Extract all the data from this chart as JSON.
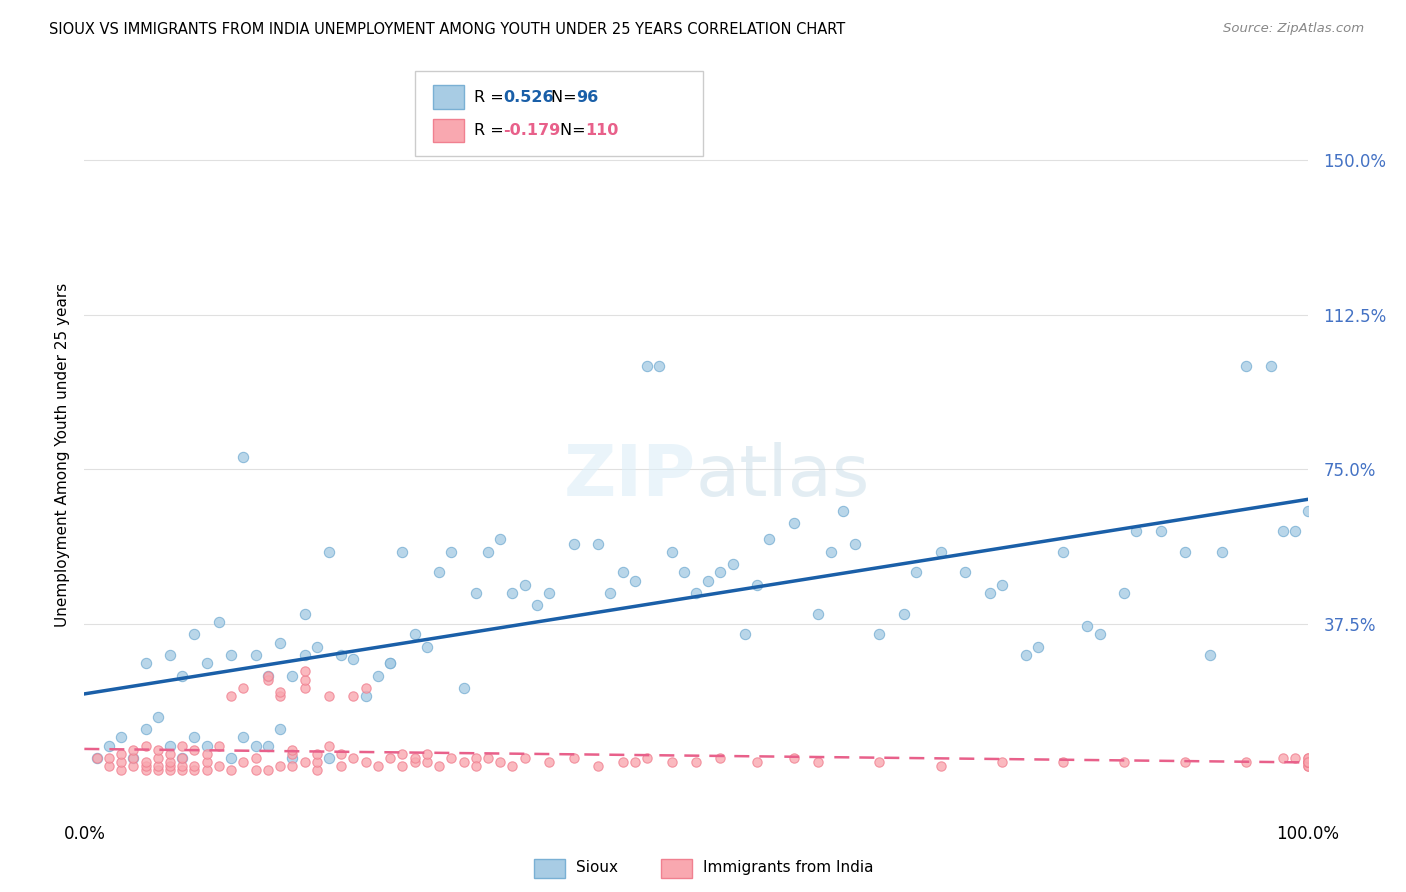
{
  "title": "SIOUX VS IMMIGRANTS FROM INDIA UNEMPLOYMENT AMONG YOUTH UNDER 25 YEARS CORRELATION CHART",
  "source_text": "Source: ZipAtlas.com",
  "ylabel": "Unemployment Among Youth under 25 years",
  "ytick_values": [
    0,
    37.5,
    75.0,
    112.5,
    150.0
  ],
  "xlim": [
    0,
    100
  ],
  "ylim": [
    -8,
    165
  ],
  "R1": 0.526,
  "N1": 96,
  "R2": -0.179,
  "N2": 110,
  "color_sioux_fill": "#a8cce4",
  "color_sioux_edge": "#7ab0d4",
  "color_india_fill": "#f9a8b0",
  "color_india_edge": "#f08090",
  "color_line_sioux": "#1a5fa8",
  "color_line_india": "#e8608a",
  "watermark_color": "#d8e8f0",
  "background_color": "#ffffff",
  "grid_color": "#e0e0e0",
  "ytick_color": "#4472c4",
  "sioux_x": [
    1,
    2,
    3,
    4,
    5,
    5,
    6,
    7,
    7,
    8,
    8,
    9,
    9,
    10,
    10,
    11,
    12,
    12,
    13,
    13,
    14,
    14,
    15,
    15,
    16,
    16,
    17,
    17,
    18,
    18,
    19,
    20,
    20,
    21,
    22,
    23,
    24,
    25,
    25,
    26,
    27,
    28,
    29,
    30,
    31,
    32,
    33,
    34,
    35,
    36,
    37,
    38,
    40,
    42,
    43,
    44,
    45,
    46,
    47,
    48,
    49,
    50,
    51,
    52,
    53,
    54,
    55,
    56,
    58,
    60,
    61,
    62,
    63,
    65,
    67,
    68,
    70,
    72,
    74,
    75,
    77,
    78,
    80,
    82,
    83,
    85,
    86,
    88,
    90,
    92,
    93,
    95,
    97,
    98,
    99,
    100
  ],
  "sioux_y": [
    5,
    8,
    10,
    5,
    12,
    28,
    15,
    8,
    30,
    5,
    25,
    10,
    35,
    8,
    28,
    38,
    5,
    30,
    10,
    78,
    8,
    30,
    8,
    25,
    33,
    12,
    25,
    5,
    30,
    40,
    32,
    55,
    5,
    30,
    29,
    20,
    25,
    28,
    28,
    55,
    35,
    32,
    50,
    55,
    22,
    45,
    55,
    58,
    45,
    47,
    42,
    45,
    57,
    57,
    45,
    50,
    48,
    100,
    100,
    55,
    50,
    45,
    48,
    50,
    52,
    35,
    47,
    58,
    62,
    40,
    55,
    65,
    57,
    35,
    40,
    50,
    55,
    50,
    45,
    47,
    30,
    32,
    55,
    37,
    35,
    45,
    60,
    60,
    55,
    30,
    55,
    100,
    100,
    60,
    60,
    65
  ],
  "india_x": [
    1,
    2,
    2,
    3,
    3,
    3,
    4,
    4,
    4,
    5,
    5,
    5,
    5,
    6,
    6,
    6,
    6,
    7,
    7,
    7,
    7,
    8,
    8,
    8,
    8,
    9,
    9,
    9,
    10,
    10,
    10,
    11,
    11,
    12,
    12,
    13,
    13,
    14,
    14,
    15,
    15,
    15,
    16,
    16,
    16,
    17,
    17,
    17,
    18,
    18,
    18,
    18,
    19,
    19,
    19,
    20,
    20,
    21,
    21,
    22,
    22,
    23,
    23,
    24,
    25,
    26,
    26,
    27,
    27,
    28,
    28,
    29,
    30,
    31,
    32,
    32,
    33,
    34,
    35,
    36,
    38,
    40,
    42,
    44,
    45,
    46,
    48,
    50,
    52,
    55,
    58,
    60,
    65,
    70,
    75,
    80,
    85,
    90,
    95,
    98,
    99,
    100,
    100,
    100,
    100,
    100,
    100,
    100,
    100,
    100
  ],
  "india_y": [
    5,
    3,
    5,
    2,
    4,
    6,
    3,
    5,
    7,
    2,
    3,
    4,
    8,
    2,
    3,
    5,
    7,
    2,
    3,
    4,
    6,
    2,
    3,
    5,
    8,
    2,
    3,
    7,
    2,
    4,
    6,
    3,
    8,
    2,
    20,
    4,
    22,
    2,
    5,
    2,
    24,
    25,
    3,
    20,
    21,
    3,
    6,
    7,
    4,
    22,
    24,
    26,
    2,
    4,
    6,
    20,
    8,
    3,
    6,
    5,
    20,
    4,
    22,
    3,
    5,
    3,
    6,
    4,
    5,
    4,
    6,
    3,
    5,
    4,
    5,
    3,
    5,
    4,
    3,
    5,
    4,
    5,
    3,
    4,
    4,
    5,
    4,
    4,
    5,
    4,
    5,
    4,
    4,
    3,
    4,
    4,
    4,
    4,
    4,
    5,
    5,
    3,
    3,
    4,
    4,
    4,
    4,
    5,
    5,
    4
  ]
}
